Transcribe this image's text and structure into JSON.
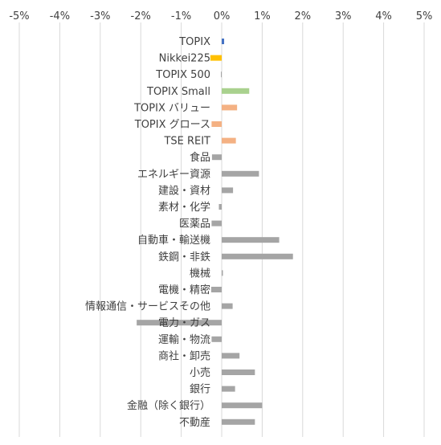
{
  "chart_data": {
    "type": "bar",
    "orientation": "horizontal",
    "title": "",
    "xlabel": "",
    "ylabel": "",
    "xlim": [
      -5,
      5
    ],
    "x_ticks": [
      -5,
      -4,
      -3,
      -2,
      -1,
      0,
      1,
      2,
      3,
      4,
      5
    ],
    "x_tick_labels": [
      "-5%",
      "-4%",
      "-3%",
      "-2%",
      "-1%",
      "0%",
      "1%",
      "2%",
      "3%",
      "4%",
      "5%"
    ],
    "x_axis_position": "top",
    "grid": "vertical",
    "legend": "none",
    "categories": [
      "TOPIX",
      "Nikkei225",
      "TOPIX 500",
      "TOPIX Small",
      "TOPIX バリュー",
      "TOPIX グロース",
      "TSE REIT",
      "食品",
      "エネルギー資源",
      "建設・資材",
      "素材・化学",
      "医薬品",
      "自動車・輸送機",
      "鉄鋼・非鉄",
      "機械",
      "電機・精密",
      "情報通信・サービスその他",
      "電力・ガス",
      "運輸・物流",
      "商社・卸売",
      "小売",
      "銀行",
      "金融（除く銀行）",
      "不動産"
    ],
    "values": [
      0.06,
      -0.28,
      -0.02,
      0.68,
      0.38,
      -0.25,
      0.35,
      -0.24,
      0.92,
      0.28,
      -0.07,
      -0.25,
      1.42,
      1.76,
      0.03,
      -0.26,
      0.27,
      -2.1,
      -0.25,
      0.44,
      0.82,
      0.33,
      1.0,
      0.82
    ],
    "colors": [
      "#4472c4",
      "#ffc000",
      "#a5a5a5",
      "#a9d18e",
      "#f4b183",
      "#f4b183",
      "#f4b183",
      "#a5a5a5",
      "#a5a5a5",
      "#a5a5a5",
      "#a5a5a5",
      "#a5a5a5",
      "#a5a5a5",
      "#a5a5a5",
      "#a5a5a5",
      "#a5a5a5",
      "#a5a5a5",
      "#a5a5a5",
      "#a5a5a5",
      "#a5a5a5",
      "#a5a5a5",
      "#a5a5a5",
      "#a5a5a5",
      "#a5a5a5"
    ],
    "gridline_color": "#d9d9d9",
    "text_color": "#404040"
  }
}
